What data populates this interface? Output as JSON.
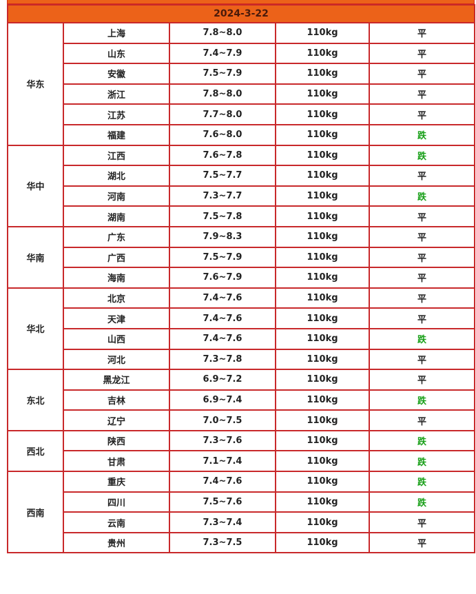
{
  "date": "2024-3-22",
  "colors": {
    "header": "#ec6219",
    "border": "#c8282a",
    "down": "#1aa01a"
  },
  "regions": [
    {
      "name": "华东",
      "rows": [
        [
          "上海",
          "7.8~8.0",
          "110kg",
          "平"
        ],
        [
          "山东",
          "7.4~7.9",
          "110kg",
          "平"
        ],
        [
          "安徽",
          "7.5~7.9",
          "110kg",
          "平"
        ],
        [
          "浙江",
          "7.8~8.0",
          "110kg",
          "平"
        ],
        [
          "江苏",
          "7.7~8.0",
          "110kg",
          "平"
        ],
        [
          "福建",
          "7.6~8.0",
          "110kg",
          "跌"
        ]
      ]
    },
    {
      "name": "华中",
      "rows": [
        [
          "江西",
          "7.6~7.8",
          "110kg",
          "跌"
        ],
        [
          "湖北",
          "7.5~7.7",
          "110kg",
          "平"
        ],
        [
          "河南",
          "7.3~7.7",
          "110kg",
          "跌"
        ],
        [
          "湖南",
          "7.5~7.8",
          "110kg",
          "平"
        ]
      ]
    },
    {
      "name": "华南",
      "rows": [
        [
          "广东",
          "7.9~8.3",
          "110kg",
          "平"
        ],
        [
          "广西",
          "7.5~7.9",
          "110kg",
          "平"
        ],
        [
          "海南",
          "7.6~7.9",
          "110kg",
          "平"
        ]
      ]
    },
    {
      "name": "华北",
      "rows": [
        [
          "北京",
          "7.4~7.6",
          "110kg",
          "平"
        ],
        [
          "天津",
          "7.4~7.6",
          "110kg",
          "平"
        ],
        [
          "山西",
          "7.4~7.6",
          "110kg",
          "跌"
        ],
        [
          "河北",
          "7.3~7.8",
          "110kg",
          "平"
        ]
      ]
    },
    {
      "name": "东北",
      "rows": [
        [
          "黑龙江",
          "6.9~7.2",
          "110kg",
          "平"
        ],
        [
          "吉林",
          "6.9~7.4",
          "110kg",
          "跌"
        ],
        [
          "辽宁",
          "7.0~7.5",
          "110kg",
          "平"
        ]
      ]
    },
    {
      "name": "西北",
      "rows": [
        [
          "陕西",
          "7.3~7.6",
          "110kg",
          "跌"
        ],
        [
          "甘肃",
          "7.1~7.4",
          "110kg",
          "跌"
        ]
      ]
    },
    {
      "name": "西南",
      "rows": [
        [
          "重庆",
          "7.4~7.6",
          "110kg",
          "跌"
        ],
        [
          "四川",
          "7.5~7.6",
          "110kg",
          "跌"
        ],
        [
          "云南",
          "7.3~7.4",
          "110kg",
          "平"
        ],
        [
          "贵州",
          "7.3~7.5",
          "110kg",
          "平"
        ]
      ]
    }
  ]
}
